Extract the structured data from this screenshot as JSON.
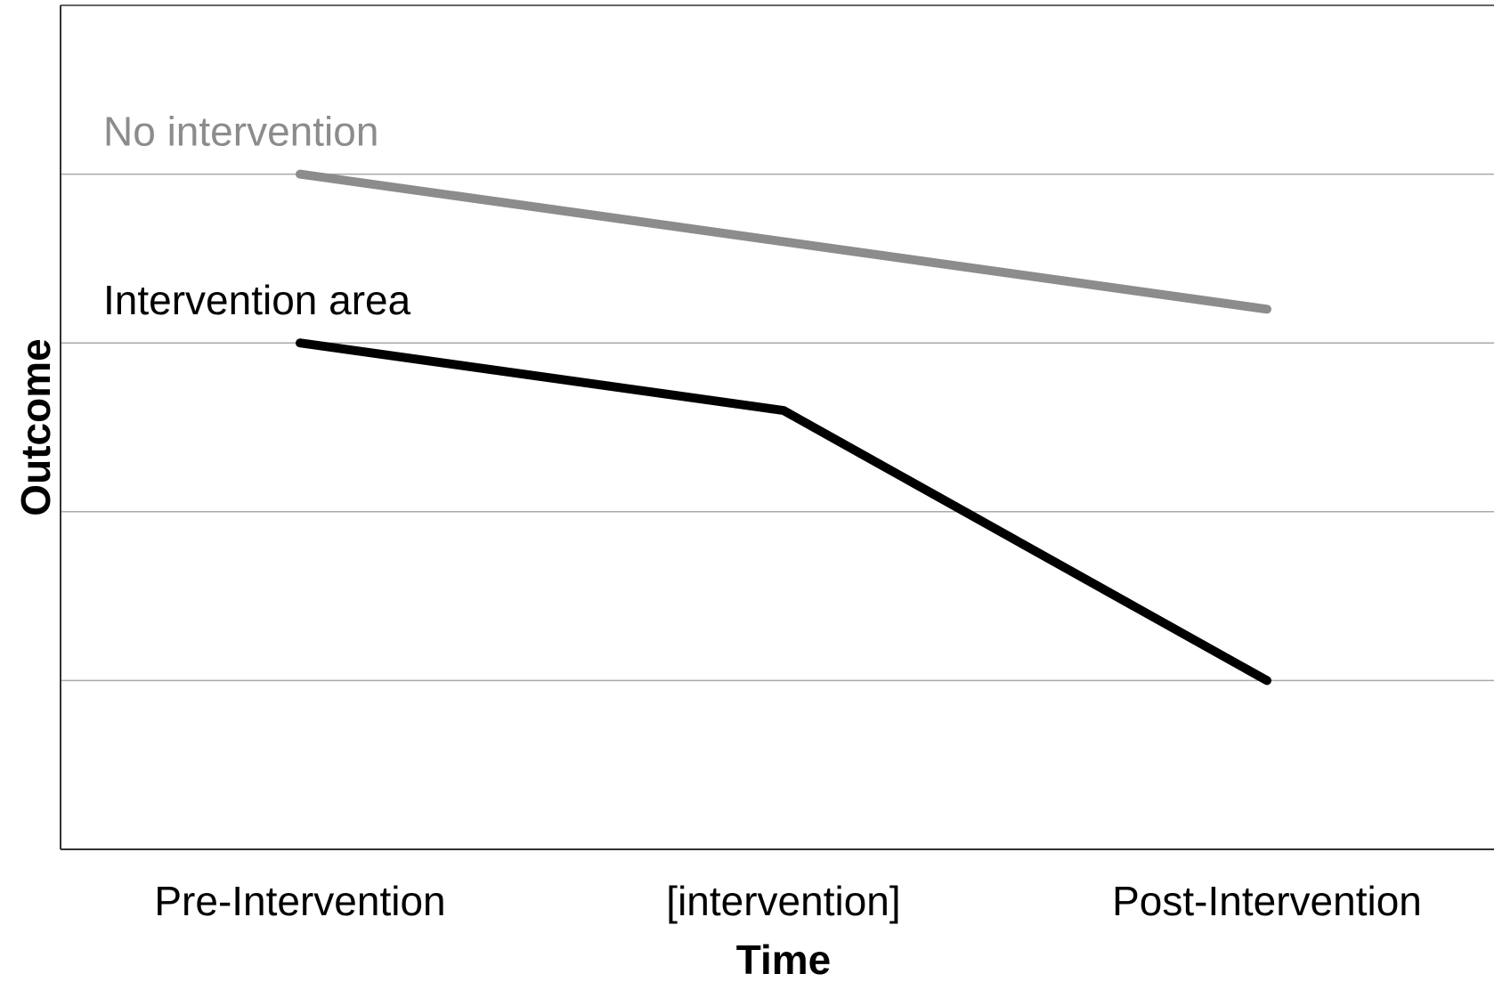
{
  "chart_data": {
    "type": "line",
    "title": "",
    "xlabel": "Time",
    "ylabel": "Outcome",
    "categories": [
      "Pre-Intervention",
      "[intervention]",
      "Post-Intervention"
    ],
    "ylim": [
      0,
      5
    ],
    "grid": true,
    "yticks": [
      1,
      2,
      3,
      4
    ],
    "series": [
      {
        "name": "No intervention",
        "color": "#8c8c8c",
        "values": [
          4.0,
          3.6,
          3.2
        ]
      },
      {
        "name": "Intervention area",
        "color": "#000000",
        "values": [
          3.0,
          2.6,
          1.0
        ]
      }
    ]
  }
}
